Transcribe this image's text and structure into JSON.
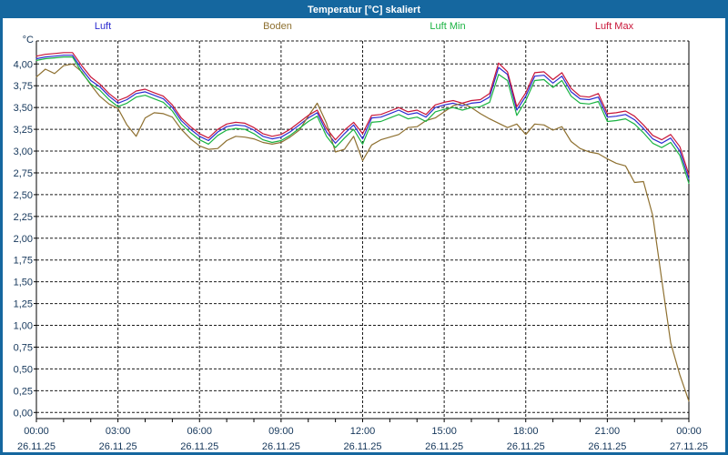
{
  "window": {
    "title": "Temperatur [°C] skaliert"
  },
  "colors": {
    "chrome": "#15679f",
    "background": "#ffffff",
    "grid": "#1b1b1b",
    "axis_text": "#14365a"
  },
  "chart_data": {
    "type": "line",
    "title": "Temperatur [°C] skaliert",
    "y_unit": "°C",
    "ylim": [
      0,
      4.25
    ],
    "ytick_step": 0.25,
    "ytick_decimal_separator": ",",
    "grid": true,
    "legend_position": "top",
    "x_minor_tick_hours": 1,
    "x_ticks": [
      {
        "time": "00:00",
        "date": "26.11.25",
        "t": 0
      },
      {
        "time": "03:00",
        "date": "26.11.25",
        "t": 3
      },
      {
        "time": "06:00",
        "date": "26.11.25",
        "t": 6
      },
      {
        "time": "09:00",
        "date": "26.11.25",
        "t": 9
      },
      {
        "time": "12:00",
        "date": "26.11.25",
        "t": 12
      },
      {
        "time": "15:00",
        "date": "26.11.25",
        "t": 15
      },
      {
        "time": "18:00",
        "date": "26.11.25",
        "t": 18
      },
      {
        "time": "21:00",
        "date": "26.11.25",
        "t": 21
      },
      {
        "time": "00:00",
        "date": "27.11.25",
        "t": 24
      }
    ],
    "x_hours": [
      0,
      0.33,
      0.67,
      1,
      1.33,
      1.67,
      2,
      2.33,
      2.67,
      3,
      3.33,
      3.67,
      4,
      4.33,
      4.67,
      5,
      5.33,
      5.67,
      6,
      6.33,
      6.67,
      7,
      7.33,
      7.67,
      8,
      8.33,
      8.67,
      9,
      9.33,
      9.67,
      10,
      10.33,
      10.67,
      11,
      11.33,
      11.67,
      12,
      12.33,
      12.67,
      13,
      13.33,
      13.67,
      14,
      14.33,
      14.67,
      15,
      15.33,
      15.67,
      16,
      16.33,
      16.67,
      17,
      17.33,
      17.67,
      18,
      18.33,
      18.67,
      19,
      19.33,
      19.67,
      20,
      20.33,
      20.67,
      21,
      21.33,
      21.67,
      22,
      22.33,
      22.67,
      23,
      23.33,
      23.67,
      24
    ],
    "series": [
      {
        "name": "Luft",
        "color": "#2b2bd0",
        "values": [
          4.06,
          4.08,
          4.09,
          4.1,
          4.1,
          3.94,
          3.81,
          3.74,
          3.63,
          3.55,
          3.59,
          3.66,
          3.68,
          3.64,
          3.6,
          3.5,
          3.35,
          3.25,
          3.17,
          3.12,
          3.22,
          3.28,
          3.3,
          3.29,
          3.24,
          3.17,
          3.14,
          3.16,
          3.22,
          3.3,
          3.38,
          3.44,
          3.22,
          3.09,
          3.2,
          3.3,
          3.14,
          3.38,
          3.39,
          3.43,
          3.47,
          3.42,
          3.44,
          3.39,
          3.5,
          3.53,
          3.55,
          3.52,
          3.55,
          3.56,
          3.62,
          3.96,
          3.88,
          3.47,
          3.63,
          3.86,
          3.87,
          3.78,
          3.86,
          3.68,
          3.6,
          3.59,
          3.62,
          3.39,
          3.4,
          3.42,
          3.36,
          3.26,
          3.14,
          3.09,
          3.15,
          3.0,
          2.68
        ]
      },
      {
        "name": "Boden",
        "color": "#8e7030",
        "values": [
          3.85,
          3.94,
          3.89,
          3.98,
          4.0,
          3.91,
          3.76,
          3.63,
          3.54,
          3.49,
          3.3,
          3.17,
          3.38,
          3.44,
          3.43,
          3.39,
          3.25,
          3.14,
          3.06,
          3.02,
          3.03,
          3.12,
          3.17,
          3.16,
          3.14,
          3.1,
          3.08,
          3.1,
          3.16,
          3.24,
          3.4,
          3.55,
          3.32,
          2.99,
          3.02,
          3.17,
          2.89,
          3.07,
          3.13,
          3.16,
          3.19,
          3.27,
          3.28,
          3.35,
          3.38,
          3.45,
          3.52,
          3.55,
          3.5,
          3.43,
          3.37,
          3.32,
          3.27,
          3.31,
          3.19,
          3.31,
          3.3,
          3.24,
          3.28,
          3.11,
          3.03,
          2.99,
          2.97,
          2.91,
          2.86,
          2.83,
          2.64,
          2.65,
          2.26,
          1.53,
          0.8,
          0.43,
          0.13
        ]
      },
      {
        "name": "Luft Min",
        "color": "#1ab342",
        "values": [
          4.04,
          4.06,
          4.07,
          4.08,
          4.08,
          3.9,
          3.77,
          3.7,
          3.59,
          3.51,
          3.55,
          3.62,
          3.64,
          3.6,
          3.56,
          3.46,
          3.31,
          3.21,
          3.13,
          3.08,
          3.18,
          3.24,
          3.26,
          3.25,
          3.2,
          3.13,
          3.1,
          3.12,
          3.18,
          3.26,
          3.34,
          3.4,
          3.17,
          3.04,
          3.15,
          3.25,
          3.08,
          3.33,
          3.34,
          3.38,
          3.42,
          3.37,
          3.39,
          3.34,
          3.45,
          3.48,
          3.5,
          3.47,
          3.5,
          3.51,
          3.56,
          3.88,
          3.81,
          3.41,
          3.58,
          3.81,
          3.82,
          3.73,
          3.81,
          3.63,
          3.55,
          3.54,
          3.57,
          3.34,
          3.35,
          3.37,
          3.31,
          3.21,
          3.09,
          3.04,
          3.1,
          2.95,
          2.63
        ]
      },
      {
        "name": "Luft Max",
        "color": "#c81538",
        "values": [
          4.09,
          4.11,
          4.12,
          4.13,
          4.13,
          3.98,
          3.85,
          3.77,
          3.66,
          3.58,
          3.62,
          3.69,
          3.71,
          3.67,
          3.63,
          3.53,
          3.38,
          3.28,
          3.2,
          3.15,
          3.25,
          3.31,
          3.33,
          3.32,
          3.27,
          3.2,
          3.17,
          3.19,
          3.25,
          3.33,
          3.41,
          3.47,
          3.26,
          3.13,
          3.24,
          3.33,
          3.2,
          3.41,
          3.42,
          3.46,
          3.5,
          3.45,
          3.47,
          3.42,
          3.53,
          3.56,
          3.58,
          3.55,
          3.58,
          3.59,
          3.66,
          4.01,
          3.91,
          3.51,
          3.67,
          3.9,
          3.91,
          3.82,
          3.9,
          3.72,
          3.63,
          3.62,
          3.66,
          3.43,
          3.44,
          3.46,
          3.4,
          3.3,
          3.18,
          3.13,
          3.19,
          3.05,
          2.73
        ]
      }
    ]
  }
}
